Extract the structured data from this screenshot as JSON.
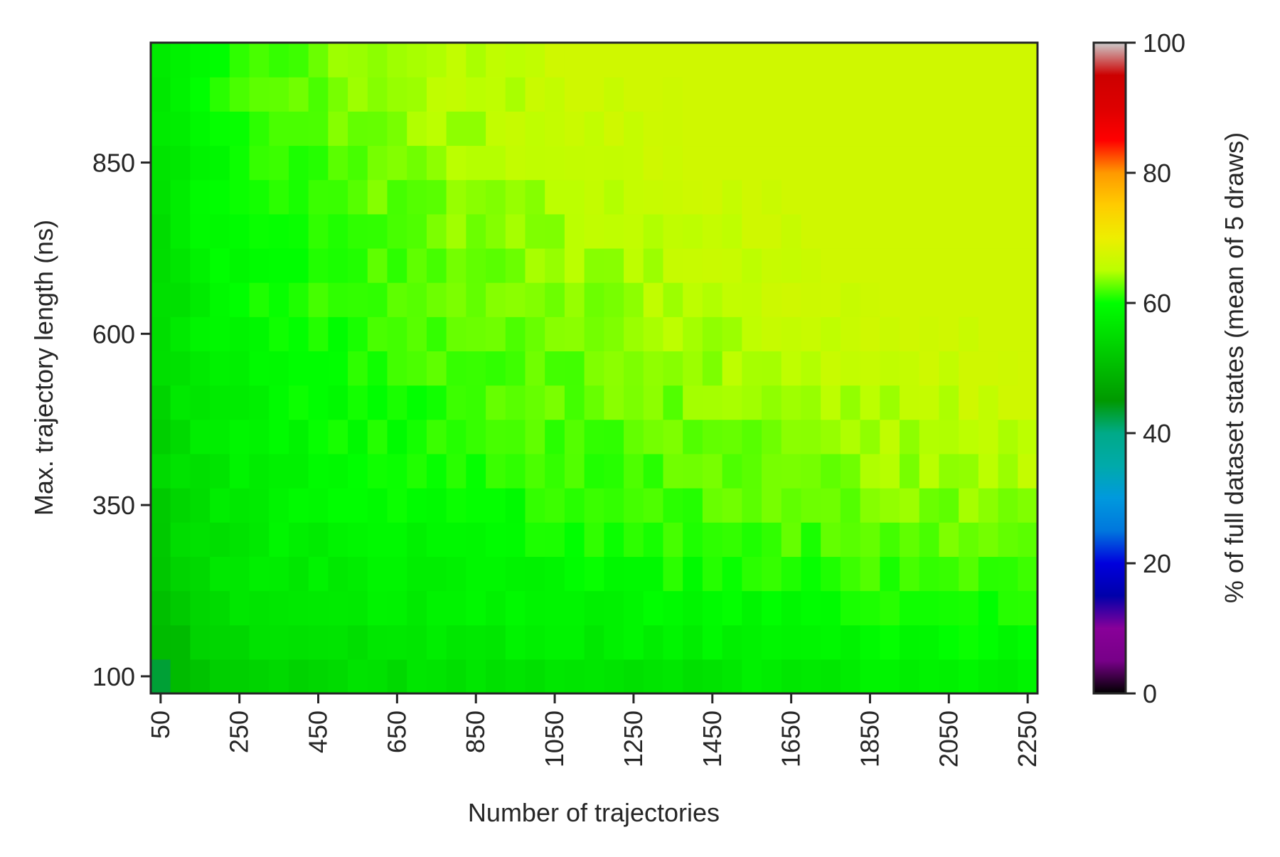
{
  "chart_data": {
    "type": "heatmap",
    "title": "",
    "xlabel": "Number of trajectories",
    "ylabel": "Max. trajectory length (ns)",
    "colorbar_label": "% of full dataset states (mean of 5 draws)",
    "x_ticks": [
      50,
      250,
      450,
      650,
      850,
      1050,
      1250,
      1450,
      1650,
      1850,
      2050,
      2250
    ],
    "y_ticks": [
      100,
      350,
      600,
      850
    ],
    "colorbar_ticks": [
      0,
      20,
      40,
      60,
      80,
      100
    ],
    "x_range": [
      50,
      2250
    ],
    "x_step": 50,
    "y_range": [
      100,
      1000
    ],
    "y_step": 50,
    "colorbar_range": [
      0,
      100
    ],
    "colormap": "nipy_spectral",
    "grid": false,
    "value_model": {
      "description_omitted": true,
      "base_at_origin": 43,
      "rises_toward": "top-right",
      "max_value": 67,
      "typical_min": 52
    }
  }
}
